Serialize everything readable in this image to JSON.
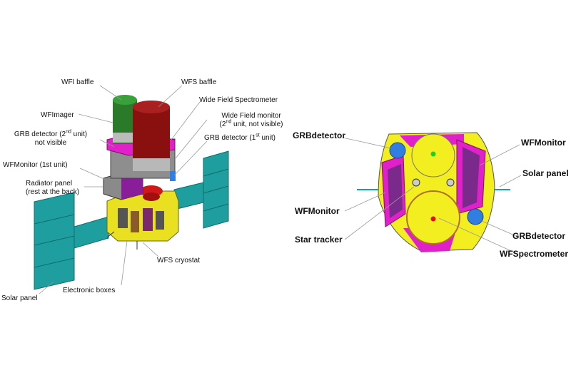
{
  "left_view": {
    "labels": {
      "wfi_baffle": "WFI baffle",
      "wfs_baffle": "WFS baffle",
      "wide_field_spectrometer": "Wide Field Spectrometer",
      "wide_field_monitor": "Wide Field monitor",
      "wide_field_monitor_note_pre": "(2",
      "wide_field_monitor_note_sup": "nd",
      "wide_field_monitor_note_post": " unit, not visible)",
      "wfimager": "WFImager",
      "grb_detector_2_pre": "GRB detector (2",
      "grb_detector_2_sup": "nd",
      "grb_detector_2_post": " unit)",
      "grb_detector_2_note": "not visible",
      "grb_detector_1_pre": "GRB detector (1",
      "grb_detector_1_sup": "st",
      "grb_detector_1_post": " unit)",
      "wfmonitor_1st": "WFMonitor (1st unit)",
      "radiator_panel": "Radiator panel",
      "radiator_panel_note": "(rest at the back)",
      "wfs_cryostat": "WFS cryostat",
      "electronic_boxes": "Electronic boxes",
      "solar_panel": "Solar panel"
    }
  },
  "right_view": {
    "labels": {
      "grbdetector_top": "GRBdetector",
      "wfmonitor_top": "WFMonitor",
      "solar_panel": "Solar panel",
      "wfmonitor_left": "WFMonitor",
      "star_tracker": "Star tracker",
      "grbdetector_bottom": "GRBdetector",
      "wfspectrometer": "WFSpectrometer"
    }
  },
  "colors": {
    "teal_panel": "#1e9e9e",
    "magenta": "#e020c8",
    "yellow": "#f2ee20",
    "dark_red": "#8a1010",
    "green": "#2a7a2a",
    "blue": "#2f7ee0",
    "purple": "#7a2a8a",
    "red_dot": "#e01010",
    "green_dot": "#20d020"
  }
}
